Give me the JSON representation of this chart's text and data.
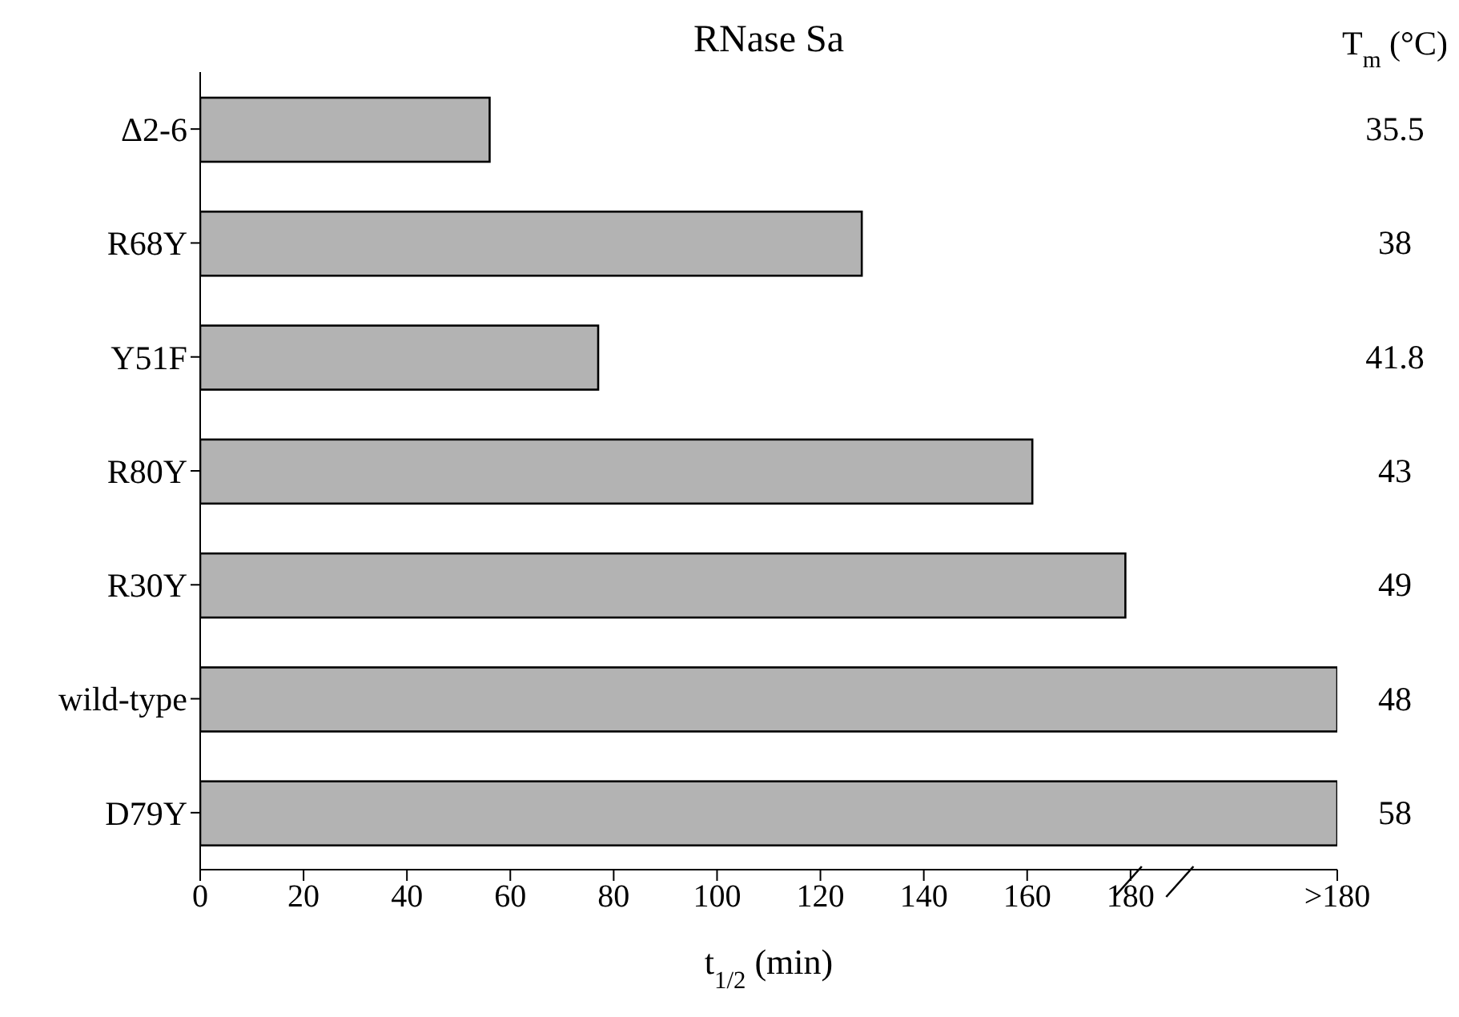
{
  "chart_data": {
    "type": "bar",
    "orientation": "horizontal",
    "title": "RNase Sa",
    "xlabel": "t$_{1/2}$ (min)",
    "categories": [
      "Δ2-6",
      "R68Y",
      "Y51F",
      "R80Y",
      "R30Y",
      "wild-type",
      "D79Y"
    ],
    "values": [
      56,
      128,
      77,
      161,
      179,
      220,
      220
    ],
    "color": "#b3b3b3",
    "xlim": [
      0,
      220
    ],
    "xticks": [
      0,
      20,
      40,
      60,
      80,
      100,
      120,
      140,
      160,
      180,
      {
        "value": 220,
        "label": ">180"
      }
    ],
    "grid": false,
    "legend": false,
    "annotations": [
      "T$_{m}$ (°C)",
      "35.5",
      "38",
      "41.8",
      "43",
      "49",
      "48",
      "58"
    ]
  }
}
